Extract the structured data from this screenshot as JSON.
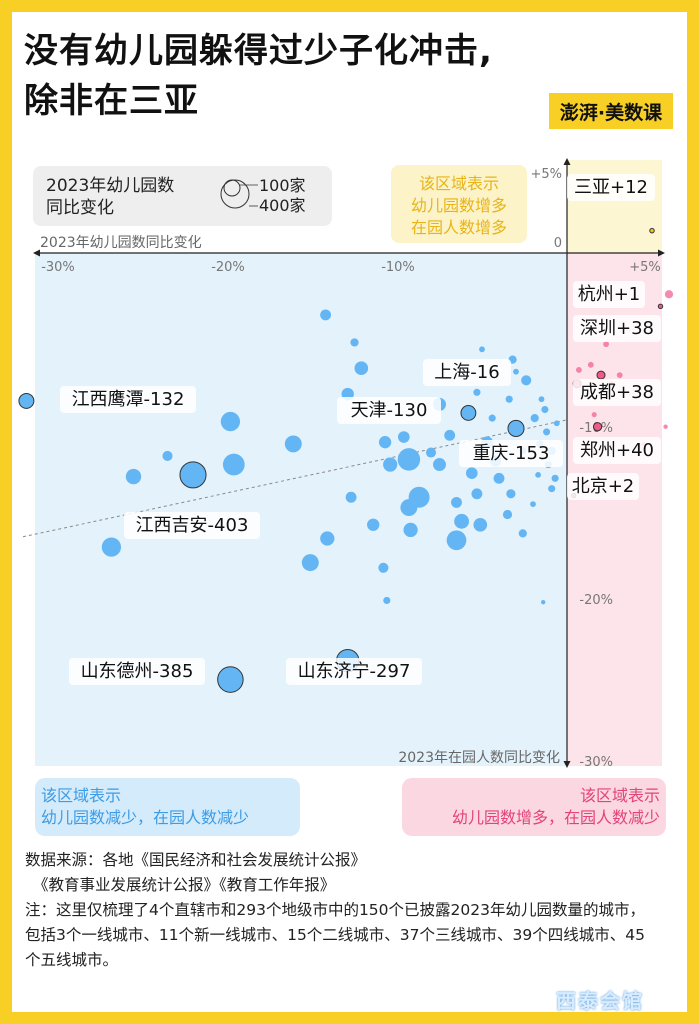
{
  "title_lines": [
    "没有幼儿园躲得过少子化冲击,",
    "除非在三亚"
  ],
  "brand": "澎湃·美数课",
  "legend": {
    "title": "2023年幼儿园数\n同比变化",
    "size_small": "100家",
    "size_large": "400家"
  },
  "boxes": {
    "top_right": "该区域表示\n幼儿园数增多\n在园人数增多",
    "bottom_left": "该区域表示\n幼儿园数减少，在园人数减少",
    "bottom_right": "该区域表示\n幼儿园数增多，在园人数减少"
  },
  "footer": [
    "数据来源：各地《国民经济和社会发展统计公报》",
    "《教育事业发展统计公报》《教育工作年报》",
    "注：这里仅梳理了4个直辖市和293个地级市中的150个已披露2023年幼儿园数量的城市，包括3个一线城市、11个新一线城市、15个二线城市、37个三线城市、39个四线城市、45个五线城市。"
  ],
  "watermark": "西泰会馆",
  "colors": {
    "blue": "#63b6f3",
    "pink": "#f0588e",
    "sanya": "#f2c21a",
    "blue_zone": "#e4f2fb",
    "pink_zone": "#fde3ea",
    "yellow_zone": "#fdf6d2"
  },
  "chart_data": {
    "type": "scatter",
    "xlabel": "2023年幼儿园数同比变化",
    "ylabel": "2023年在园人数同比变化",
    "xlim": [
      -32,
      6
    ],
    "ylim": [
      -30,
      5
    ],
    "x_ticks": [
      "-30%",
      "-20%",
      "-10%",
      "+5%"
    ],
    "y_ticks": [
      "+5%",
      "0",
      "-10%",
      "-20%",
      "-30%"
    ],
    "labeled_points": [
      {
        "name": "三亚+12",
        "x": 5,
        "y": 1.3,
        "size": 12,
        "group": "sanya"
      },
      {
        "name": "杭州+1",
        "x": 5.5,
        "y": -3.1,
        "size": 1,
        "group": "pink"
      },
      {
        "name": "深圳+38",
        "x": 2,
        "y": -7.1,
        "size": 38,
        "group": "pink"
      },
      {
        "name": "成都+38",
        "x": 0.6,
        "y": -7.6,
        "size": 38,
        "group": "pink"
      },
      {
        "name": "郑州+40",
        "x": 1.8,
        "y": -10.1,
        "size": 40,
        "group": "pink"
      },
      {
        "name": "北京+2",
        "x": 0.4,
        "y": -14.1,
        "size": 2,
        "group": "pink"
      },
      {
        "name": "上海-16",
        "x": -5.8,
        "y": -9.3,
        "size": 16,
        "group": "blue"
      },
      {
        "name": "天津-130",
        "x": -5.8,
        "y": -9.3,
        "size": 130,
        "group": "blue"
      },
      {
        "name": "重庆-153",
        "x": -3,
        "y": -10.2,
        "size": 153,
        "group": "blue"
      },
      {
        "name": "江西鹰潭-132",
        "x": -31.8,
        "y": -8.6,
        "size": 132,
        "group": "blue"
      },
      {
        "name": "江西吉安-403",
        "x": -22,
        "y": -12.9,
        "size": 403,
        "group": "blue"
      },
      {
        "name": "山东德州-385",
        "x": -19.8,
        "y": -24.8,
        "size": 385,
        "group": "blue"
      },
      {
        "name": "山东济宁-297",
        "x": -12.9,
        "y": -23.7,
        "size": 297,
        "group": "blue"
      }
    ],
    "other_points": [
      {
        "x": -14.2,
        "y": -3.6,
        "size": 70
      },
      {
        "x": -12.5,
        "y": -5.2,
        "size": 40
      },
      {
        "x": -12.1,
        "y": -6.7,
        "size": 110
      },
      {
        "x": -12.9,
        "y": -8.2,
        "size": 90
      },
      {
        "x": -19.8,
        "y": -9.8,
        "size": 220
      },
      {
        "x": -16.1,
        "y": -11.1,
        "size": 170
      },
      {
        "x": -23.5,
        "y": -11.8,
        "size": 60
      },
      {
        "x": -25.5,
        "y": -13.0,
        "size": 140
      },
      {
        "x": -19.6,
        "y": -12.3,
        "size": 280
      },
      {
        "x": -26.8,
        "y": -17.1,
        "size": 220
      },
      {
        "x": -15.1,
        "y": -18.0,
        "size": 170
      },
      {
        "x": -14.1,
        "y": -16.6,
        "size": 120
      },
      {
        "x": -12.7,
        "y": -14.2,
        "size": 70
      },
      {
        "x": -11.4,
        "y": -15.8,
        "size": 90
      },
      {
        "x": -10.8,
        "y": -18.3,
        "size": 60
      },
      {
        "x": -10.7,
        "y": -11.0,
        "size": 90
      },
      {
        "x": -10.4,
        "y": -12.3,
        "size": 120
      },
      {
        "x": -9.6,
        "y": -10.7,
        "size": 80
      },
      {
        "x": -9.3,
        "y": -12.0,
        "size": 300
      },
      {
        "x": -8.7,
        "y": -14.2,
        "size": 260
      },
      {
        "x": -9.3,
        "y": -14.8,
        "size": 170
      },
      {
        "x": -9.2,
        "y": -16.1,
        "size": 120
      },
      {
        "x": -8.0,
        "y": -11.6,
        "size": 60
      },
      {
        "x": -7.5,
        "y": -8.8,
        "size": 100
      },
      {
        "x": -7.5,
        "y": -12.3,
        "size": 100
      },
      {
        "x": -6.9,
        "y": -10.6,
        "size": 70
      },
      {
        "x": -6.5,
        "y": -14.5,
        "size": 70
      },
      {
        "x": -6.5,
        "y": -16.7,
        "size": 230
      },
      {
        "x": -6.2,
        "y": -15.6,
        "size": 130
      },
      {
        "x": -5.6,
        "y": -12.8,
        "size": 80
      },
      {
        "x": -5.3,
        "y": -14.0,
        "size": 70
      },
      {
        "x": -5.1,
        "y": -15.8,
        "size": 110
      },
      {
        "x": -4.7,
        "y": -11.0,
        "size": 80
      },
      {
        "x": -4.2,
        "y": -12.1,
        "size": 70
      },
      {
        "x": -4.0,
        "y": -13.1,
        "size": 70
      },
      {
        "x": -3.3,
        "y": -14.0,
        "size": 50
      },
      {
        "x": -3.5,
        "y": -15.2,
        "size": 50
      },
      {
        "x": -2.6,
        "y": -16.3,
        "size": 40
      },
      {
        "x": -5.0,
        "y": -5.6,
        "size": 20
      },
      {
        "x": -3.2,
        "y": -6.2,
        "size": 40
      },
      {
        "x": -3.0,
        "y": -6.9,
        "size": 20
      },
      {
        "x": -2.4,
        "y": -7.4,
        "size": 60
      },
      {
        "x": -1.5,
        "y": -8.5,
        "size": 20
      },
      {
        "x": -1.3,
        "y": -9.1,
        "size": 30
      },
      {
        "x": -1.9,
        "y": -9.6,
        "size": 40
      },
      {
        "x": -1.2,
        "y": -10.4,
        "size": 30
      },
      {
        "x": -1.6,
        "y": -11.1,
        "size": 30
      },
      {
        "x": -0.9,
        "y": -11.5,
        "size": 40
      },
      {
        "x": -1.1,
        "y": -12.3,
        "size": 30
      },
      {
        "x": -0.7,
        "y": -13.1,
        "size": 30
      },
      {
        "x": -0.9,
        "y": -13.7,
        "size": 30
      },
      {
        "x": -0.6,
        "y": -9.9,
        "size": 20
      },
      {
        "x": -1.7,
        "y": -12.9,
        "size": 20
      },
      {
        "x": -2.0,
        "y": -14.6,
        "size": 20
      },
      {
        "x": -1.4,
        "y": -20.3,
        "size": 10
      },
      {
        "x": -10.6,
        "y": -20.2,
        "size": 30
      },
      {
        "x": -5.3,
        "y": -8.1,
        "size": 30
      },
      {
        "x": -4.4,
        "y": -9.6,
        "size": 30
      },
      {
        "x": -2.6,
        "y": -11.5,
        "size": 30
      },
      {
        "x": -3.4,
        "y": -8.5,
        "size": 30
      },
      {
        "x": 0.7,
        "y": -6.8,
        "size": 20
      },
      {
        "x": 1.4,
        "y": -6.5,
        "size": 20
      },
      {
        "x": 2.3,
        "y": -5.3,
        "size": 20
      },
      {
        "x": 2.6,
        "y": -7.6,
        "size": 15
      },
      {
        "x": 3.1,
        "y": -7.1,
        "size": 20
      },
      {
        "x": 1.6,
        "y": -9.4,
        "size": 15
      },
      {
        "x": 1.7,
        "y": -11.6,
        "size": 20
      },
      {
        "x": 1.2,
        "y": -13.6,
        "size": 15
      },
      {
        "x": 4.5,
        "y": -11.1,
        "size": 10
      },
      {
        "x": 5.8,
        "y": -10.1,
        "size": 10
      },
      {
        "x": 6.0,
        "y": -2.4,
        "size": 40
      }
    ],
    "trendline": {
      "x1": -32,
      "y1": -16.5,
      "x2": 0,
      "y2": -9.7
    }
  }
}
